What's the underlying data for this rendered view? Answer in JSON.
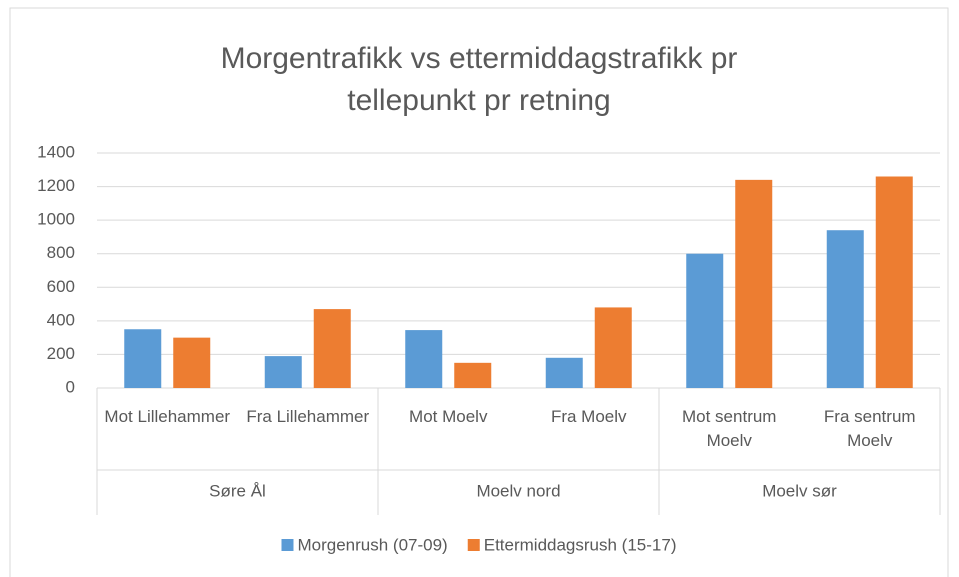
{
  "chart_data": {
    "type": "bar",
    "title": "Morgentrafikk vs ettermiddagstrafikk pr tellepunkt pr retning",
    "categories": [
      "Mot Lillehammer",
      "Fra Lillehammer",
      "Mot Moelv",
      "Fra Moelv",
      "Mot sentrum Moelv",
      "Fra sentrum Moelv"
    ],
    "groups": [
      "Søre Ål",
      "Moelv nord",
      "Moelv sør"
    ],
    "series": [
      {
        "name": "Morgenrush (07-09)",
        "color": "#5b9bd5",
        "values": [
          350,
          190,
          345,
          180,
          800,
          940
        ]
      },
      {
        "name": "Ettermiddagsrush (15-17)",
        "color": "#ed7d31",
        "values": [
          300,
          470,
          150,
          480,
          1240,
          1260
        ]
      }
    ],
    "ylim": [
      0,
      1400
    ],
    "yticks": [
      0,
      200,
      400,
      600,
      800,
      1000,
      1200,
      1400
    ],
    "grid": true,
    "legend": "bottom"
  }
}
